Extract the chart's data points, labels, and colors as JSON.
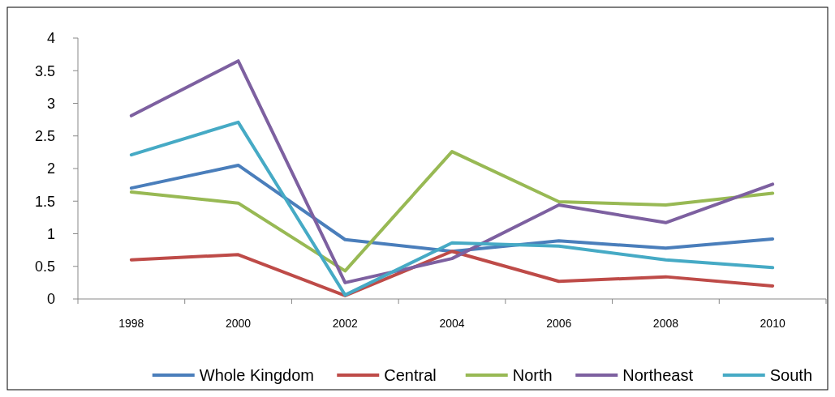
{
  "chart_data": {
    "type": "line",
    "categories": [
      "1998",
      "2000",
      "2002",
      "2004",
      "2006",
      "2008",
      "2010"
    ],
    "ylim": [
      0,
      4
    ],
    "yticks": [
      0,
      0.5,
      1,
      1.5,
      2,
      2.5,
      3,
      3.5,
      4
    ],
    "grid": false,
    "legend": "bottom",
    "marker": "none",
    "line_style": "solid",
    "series": [
      {
        "name": "Whole Kingdom",
        "color": "#4a7ebb",
        "values": [
          1.7,
          2.05,
          0.91,
          0.73,
          0.89,
          0.78,
          0.92
        ]
      },
      {
        "name": "Central",
        "color": "#be4b48",
        "values": [
          0.6,
          0.68,
          0.05,
          0.73,
          0.27,
          0.34,
          0.2
        ]
      },
      {
        "name": "North",
        "color": "#98b954",
        "values": [
          1.64,
          1.47,
          0.43,
          2.26,
          1.49,
          1.44,
          1.62
        ]
      },
      {
        "name": "Northeast",
        "color": "#7d60a0",
        "values": [
          2.81,
          3.65,
          0.25,
          0.62,
          1.44,
          1.17,
          1.76
        ]
      },
      {
        "name": "South",
        "color": "#46aac5",
        "values": [
          2.21,
          2.71,
          0.06,
          0.86,
          0.81,
          0.6,
          0.48
        ]
      }
    ]
  }
}
